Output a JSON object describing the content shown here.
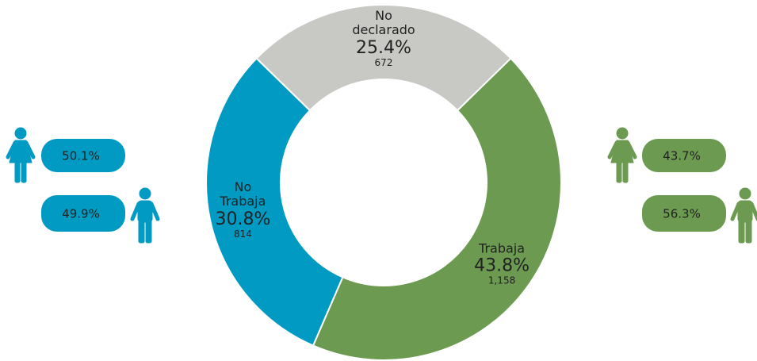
{
  "chart_data": {
    "type": "donut",
    "categories": [
      "No declarado",
      "Trabaja",
      "No Trabaja"
    ],
    "values": [
      25.4,
      43.8,
      30.8
    ],
    "value_labels": [
      "25.4%",
      "43.8%",
      "30.8%"
    ],
    "counts": [
      672,
      1158,
      814
    ],
    "count_labels": [
      "672",
      "1,158",
      "814"
    ],
    "colors": [
      "#c8c8c4",
      "#6b9a50",
      "#009ac3"
    ],
    "gender_split": [
      {
        "color": "#009ac3",
        "values": [
          50.1,
          49.9
        ],
        "value_labels": [
          "50.1%",
          "49.9%"
        ]
      },
      {
        "color": "#6b9a50",
        "values": [
          43.7,
          56.3
        ],
        "value_labels": [
          "43.7%",
          "56.3%"
        ]
      }
    ]
  }
}
